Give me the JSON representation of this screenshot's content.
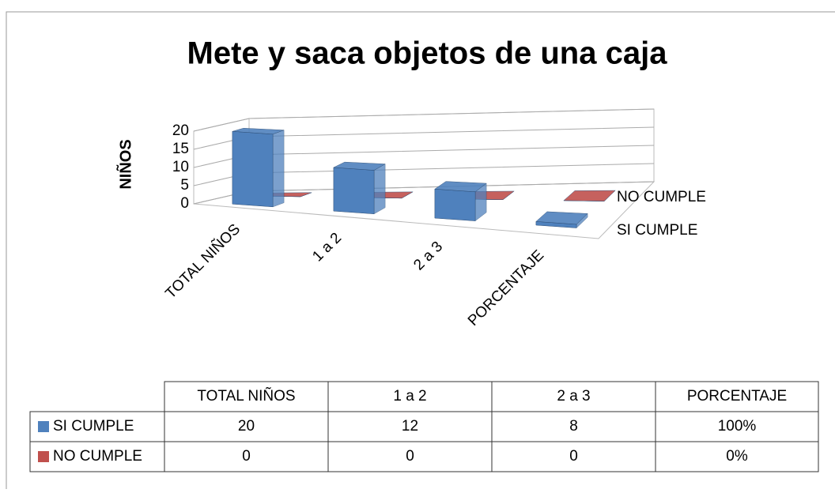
{
  "chart_data": {
    "type": "bar3d",
    "title": "Mete y saca objetos de una caja",
    "y_label": "NIÑOS",
    "categories": [
      "TOTAL NIÑOS",
      "1 a 2",
      "2 a 3",
      "PORCENTAJE"
    ],
    "series": [
      {
        "name": "SI CUMPLE",
        "color": "#4f81bd",
        "values": [
          20,
          12,
          8,
          1
        ],
        "value_labels": [
          "20",
          "12",
          "8",
          "100%"
        ]
      },
      {
        "name": "NO CUMPLE",
        "color": "#c0504d",
        "values": [
          0,
          0,
          0,
          0
        ],
        "value_labels": [
          "0",
          "0",
          "0",
          "0%"
        ]
      }
    ],
    "ylim": [
      0,
      20
    ],
    "yticks": [
      0,
      5,
      10,
      15,
      20
    ],
    "grid": true,
    "data_table": true
  }
}
